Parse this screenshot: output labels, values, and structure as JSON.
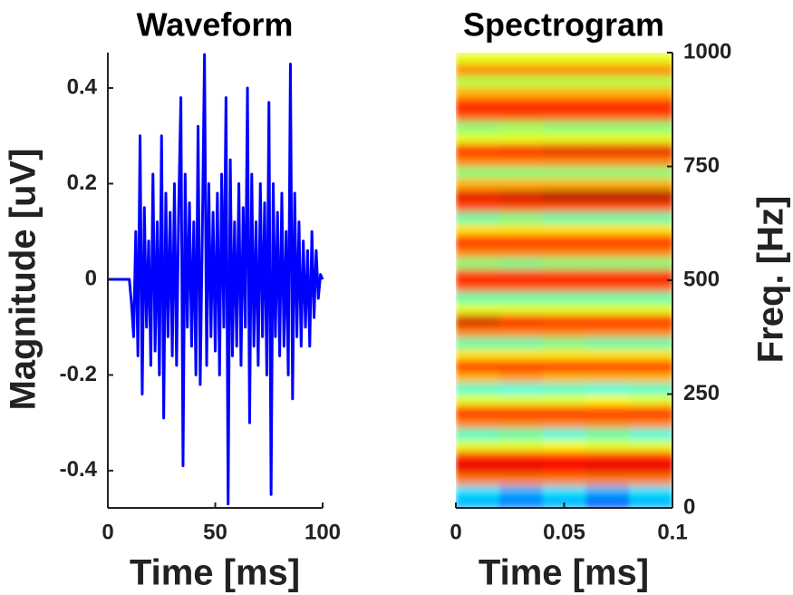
{
  "chart_data": [
    {
      "type": "line",
      "title": "Waveform",
      "xlabel": "Time [ms]",
      "ylabel": "Magnitude [uV]",
      "x": [
        0,
        1,
        2,
        3,
        4,
        5,
        6,
        7,
        8,
        9,
        10,
        11,
        12,
        13,
        14,
        15,
        16,
        17,
        18,
        19,
        20,
        21,
        22,
        23,
        24,
        25,
        26,
        27,
        28,
        29,
        30,
        31,
        32,
        33,
        34,
        35,
        36,
        37,
        38,
        39,
        40,
        41,
        42,
        43,
        44,
        45,
        46,
        47,
        48,
        49,
        50,
        51,
        52,
        53,
        54,
        55,
        56,
        57,
        58,
        59,
        60,
        61,
        62,
        63,
        64,
        65,
        66,
        67,
        68,
        69,
        70,
        71,
        72,
        73,
        74,
        75,
        76,
        77,
        78,
        79,
        80,
        81,
        82,
        83,
        84,
        85,
        86,
        87,
        88,
        89,
        90,
        91,
        92,
        93,
        94,
        95,
        96,
        97,
        98,
        99,
        100
      ],
      "series": [
        {
          "color": "#0000ff",
          "values": [
            0,
            0,
            0,
            0,
            0,
            0,
            0,
            0,
            0,
            0,
            0,
            -0.05,
            -0.12,
            0.1,
            -0.16,
            0.3,
            -0.24,
            0.15,
            -0.1,
            0.08,
            -0.18,
            0.22,
            -0.15,
            0.12,
            -0.2,
            0.3,
            -0.29,
            0.18,
            -0.12,
            0.14,
            -0.16,
            0.2,
            -0.18,
            0.15,
            0.38,
            -0.39,
            0.22,
            -0.1,
            0.16,
            -0.14,
            0.12,
            -0.2,
            0.32,
            -0.22,
            0.1,
            0.47,
            -0.18,
            0.2,
            -0.12,
            0.14,
            -0.15,
            0.18,
            -0.2,
            0.22,
            -0.1,
            0.38,
            -0.47,
            0.25,
            -0.16,
            0.12,
            -0.14,
            0.2,
            -0.18,
            0.15,
            -0.1,
            0.4,
            -0.3,
            0.22,
            -0.14,
            0.12,
            -0.18,
            0.2,
            -0.12,
            0.16,
            -0.2,
            0.37,
            -0.45,
            0.2,
            -0.12,
            0.14,
            -0.16,
            0.18,
            -0.14,
            0.1,
            -0.2,
            0.45,
            -0.25,
            0.18,
            -0.12,
            0.12,
            -0.14,
            0.08,
            -0.1,
            0.06,
            -0.14,
            0.1,
            -0.08,
            0.06,
            -0.04,
            0.01,
            0
          ]
        }
      ],
      "xlim": [
        0,
        100
      ],
      "xticks": [
        0,
        50,
        100
      ],
      "ylim": [
        -0.478,
        0.474
      ],
      "yticks": [
        -0.4,
        -0.2,
        0,
        0.2,
        0.4
      ]
    },
    {
      "type": "heatmap",
      "title": "Spectrogram",
      "xlabel": "Time [ms]",
      "ylabel": "Freq. [Hz]",
      "colormap": "jet",
      "xbins": [
        0,
        0.02,
        0.04,
        0.06,
        0.08,
        0.1
      ],
      "ybins": [
        0,
        25,
        50,
        75,
        100,
        125,
        150,
        175,
        200,
        225,
        250,
        275,
        300,
        325,
        350,
        375,
        400,
        425,
        450,
        475,
        500,
        525,
        550,
        575,
        600,
        625,
        650,
        675,
        700,
        725,
        750,
        775,
        800,
        825,
        850,
        875,
        900,
        925,
        950,
        975,
        1000
      ],
      "z": [
        [
          0.3,
          0.25,
          0.3,
          0.22,
          0.3
        ],
        [
          0.35,
          0.3,
          0.35,
          0.3,
          0.35
        ],
        [
          0.75,
          0.75,
          0.75,
          0.75,
          0.75
        ],
        [
          0.9,
          0.9,
          0.88,
          0.9,
          0.9
        ],
        [
          0.85,
          0.85,
          0.85,
          0.85,
          0.85
        ],
        [
          0.6,
          0.6,
          0.62,
          0.6,
          0.6
        ],
        [
          0.42,
          0.45,
          0.4,
          0.45,
          0.4
        ],
        [
          0.75,
          0.75,
          0.75,
          0.75,
          0.75
        ],
        [
          0.85,
          0.85,
          0.85,
          0.85,
          0.85
        ],
        [
          0.6,
          0.6,
          0.6,
          0.62,
          0.6
        ],
        [
          0.42,
          0.4,
          0.42,
          0.4,
          0.42
        ],
        [
          0.7,
          0.72,
          0.7,
          0.7,
          0.7
        ],
        [
          0.85,
          0.85,
          0.85,
          0.85,
          0.85
        ],
        [
          0.65,
          0.65,
          0.65,
          0.65,
          0.65
        ],
        [
          0.45,
          0.45,
          0.48,
          0.45,
          0.45
        ],
        [
          0.75,
          0.75,
          0.75,
          0.75,
          0.75
        ],
        [
          0.92,
          0.88,
          0.85,
          0.85,
          0.85
        ],
        [
          0.6,
          0.6,
          0.6,
          0.6,
          0.6
        ],
        [
          0.45,
          0.45,
          0.45,
          0.45,
          0.45
        ],
        [
          0.8,
          0.8,
          0.8,
          0.8,
          0.8
        ],
        [
          0.85,
          0.85,
          0.85,
          0.85,
          0.85
        ],
        [
          0.5,
          0.48,
          0.5,
          0.5,
          0.5
        ],
        [
          0.75,
          0.75,
          0.75,
          0.75,
          0.75
        ],
        [
          0.85,
          0.85,
          0.85,
          0.85,
          0.85
        ],
        [
          0.65,
          0.65,
          0.65,
          0.65,
          0.65
        ],
        [
          0.45,
          0.48,
          0.45,
          0.45,
          0.45
        ],
        [
          0.8,
          0.8,
          0.8,
          0.8,
          0.8
        ],
        [
          0.9,
          0.92,
          0.95,
          0.95,
          0.95
        ],
        [
          0.7,
          0.7,
          0.7,
          0.7,
          0.7
        ],
        [
          0.5,
          0.5,
          0.5,
          0.5,
          0.5
        ],
        [
          0.75,
          0.75,
          0.75,
          0.75,
          0.75
        ],
        [
          0.85,
          0.88,
          0.9,
          0.9,
          0.9
        ],
        [
          0.6,
          0.6,
          0.6,
          0.6,
          0.6
        ],
        [
          0.5,
          0.52,
          0.5,
          0.5,
          0.5
        ],
        [
          0.8,
          0.8,
          0.8,
          0.8,
          0.8
        ],
        [
          0.85,
          0.85,
          0.85,
          0.85,
          0.85
        ],
        [
          0.7,
          0.7,
          0.7,
          0.7,
          0.7
        ],
        [
          0.55,
          0.55,
          0.55,
          0.55,
          0.55
        ],
        [
          0.75,
          0.75,
          0.75,
          0.75,
          0.75
        ],
        [
          0.6,
          0.6,
          0.6,
          0.6,
          0.6
        ]
      ],
      "xlim": [
        0,
        0.1
      ],
      "xticks": [
        0,
        0.05,
        0.1
      ],
      "ylim": [
        0,
        1000
      ],
      "yticks": [
        0,
        250,
        500,
        750,
        1000
      ]
    }
  ]
}
